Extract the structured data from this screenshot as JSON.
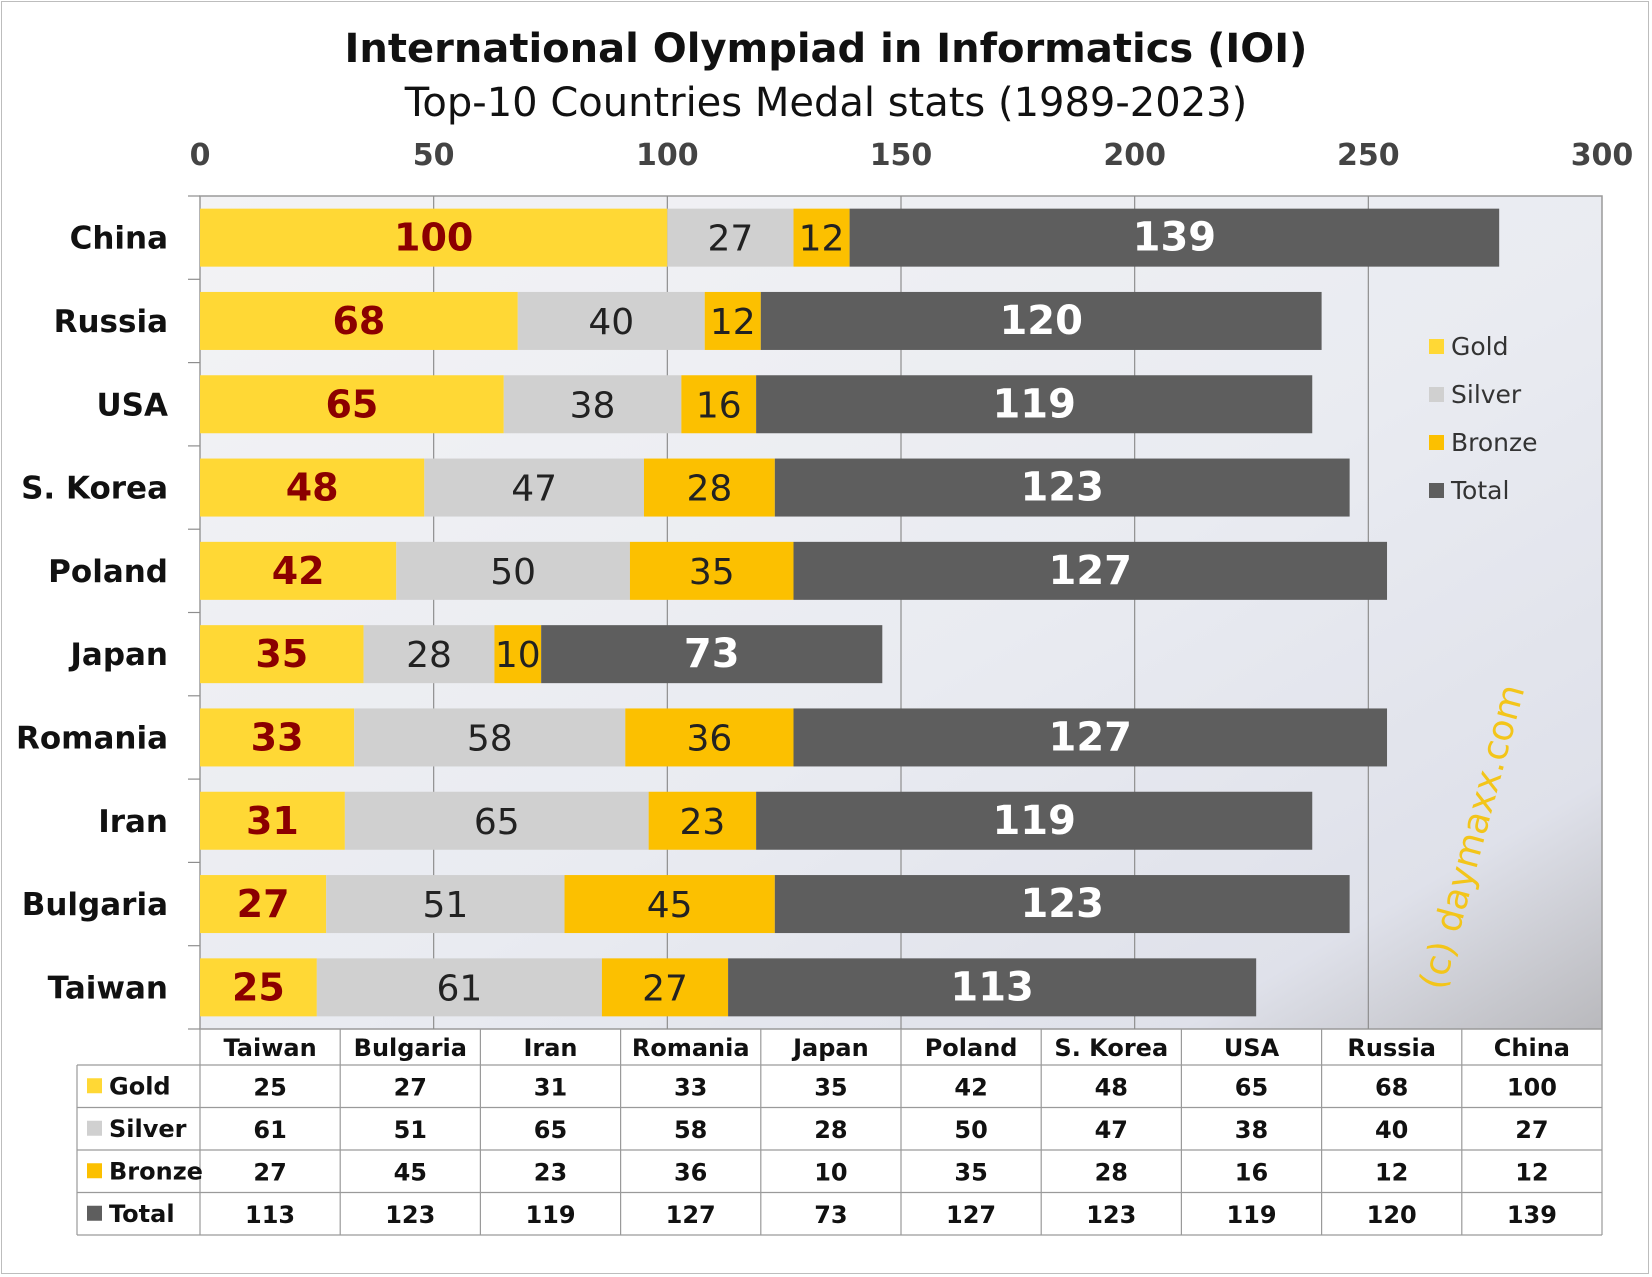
{
  "chart_data": {
    "type": "bar",
    "orientation": "horizontal",
    "stacked": true,
    "title": "International Olympiad in Informatics (IOI)",
    "subtitle": "Top-10 Countries Medal stats (1989-2023)",
    "categories": [
      "China",
      "Russia",
      "USA",
      "S. Korea",
      "Poland",
      "Japan",
      "Romania",
      "Iran",
      "Bulgaria",
      "Taiwan"
    ],
    "series": [
      {
        "name": "Gold",
        "color": "#ffd835",
        "values": [
          100,
          68,
          65,
          48,
          42,
          35,
          33,
          31,
          27,
          25
        ]
      },
      {
        "name": "Silver",
        "color": "#d0d0d0",
        "values": [
          27,
          40,
          38,
          47,
          50,
          28,
          58,
          65,
          51,
          61
        ]
      },
      {
        "name": "Bronze",
        "color": "#fcc000",
        "values": [
          12,
          12,
          16,
          28,
          35,
          10,
          36,
          23,
          45,
          27
        ]
      },
      {
        "name": "Total",
        "color": "#5e5e5e",
        "values": [
          139,
          120,
          119,
          123,
          127,
          73,
          127,
          119,
          123,
          113
        ]
      }
    ],
    "xlim": [
      0,
      300
    ],
    "xticks": [
      0,
      50,
      100,
      150,
      200,
      250,
      300
    ],
    "xaxis_position": "top",
    "grid": true,
    "legend_position": "right",
    "table": {
      "columns": [
        "Taiwan",
        "Bulgaria",
        "Iran",
        "Romania",
        "Japan",
        "Poland",
        "S. Korea",
        "USA",
        "Russia",
        "China"
      ],
      "rows": [
        {
          "name": "Gold",
          "color": "#ffd835",
          "values": [
            25,
            27,
            31,
            33,
            35,
            42,
            48,
            65,
            68,
            100
          ]
        },
        {
          "name": "Silver",
          "color": "#d0d0d0",
          "values": [
            61,
            51,
            65,
            58,
            28,
            50,
            47,
            38,
            40,
            27
          ]
        },
        {
          "name": "Bronze",
          "color": "#fcc000",
          "values": [
            27,
            45,
            23,
            36,
            10,
            35,
            28,
            16,
            12,
            12
          ]
        },
        {
          "name": "Total",
          "color": "#5e5e5e",
          "values": [
            113,
            123,
            119,
            127,
            73,
            127,
            123,
            119,
            120,
            139
          ]
        }
      ]
    },
    "watermark": "(c) daymaxx.com"
  }
}
